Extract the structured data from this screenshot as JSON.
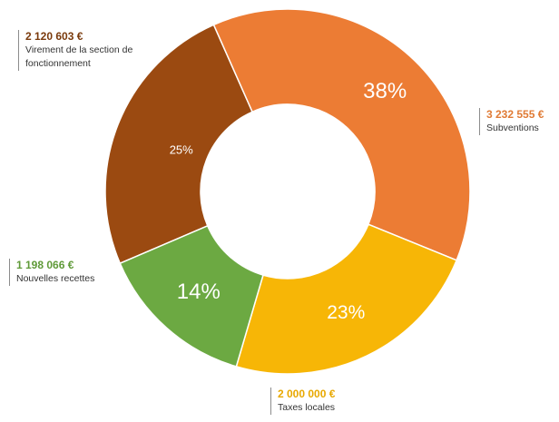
{
  "chart_data": {
    "type": "donut",
    "segments": [
      {
        "label": "Virement de la section de fonctionnement",
        "amount": "2 120 603 €",
        "value": 2120603,
        "pct_label": "25%",
        "color": "#9b4a11"
      },
      {
        "label": "Subventions",
        "amount": "3 232 555 €",
        "value": 3232555,
        "pct_label": "38%",
        "color": "#ec7c34"
      },
      {
        "label": "Taxes locales",
        "amount": "2 000 000 €",
        "value": 2000000,
        "pct_label": "23%",
        "color": "#f7b606"
      },
      {
        "label": "Nouvelles recettes",
        "amount": "1 198 066 €",
        "value": 1198066,
        "pct_label": "14%",
        "color": "#6ca942"
      }
    ],
    "start_angle_deg": 0,
    "direction": "clockwise",
    "legend": "callouts"
  }
}
